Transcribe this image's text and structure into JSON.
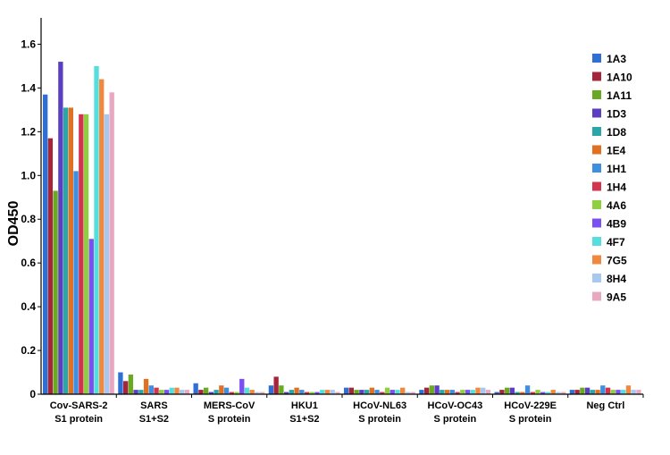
{
  "chart_data": {
    "type": "bar",
    "title": "",
    "xlabel": "",
    "ylabel": "OD450",
    "ylim": [
      0,
      1.7
    ],
    "yticks": [
      "0",
      "0.2",
      "0.4",
      "0.6",
      "0.8",
      "1.0",
      "1.2",
      "1.4",
      "1.6"
    ],
    "legend_position": "right",
    "grid": false,
    "categories": [
      [
        "Cov-SARS-2",
        "S1 protein"
      ],
      [
        "SARS",
        "S1+S2"
      ],
      [
        "MERS-CoV",
        "S protein"
      ],
      [
        "HKU1",
        "S1+S2"
      ],
      [
        "HCoV-NL63",
        "S protein"
      ],
      [
        "HCoV-OC43",
        "S protein"
      ],
      [
        "HCoV-229E",
        "S protein"
      ],
      [
        "Neg Ctrl"
      ]
    ],
    "series": [
      {
        "name": "1A3",
        "color": "#2f6fd4",
        "values": [
          1.37,
          0.1,
          0.05,
          0.04,
          0.03,
          0.02,
          0.01,
          0.02
        ]
      },
      {
        "name": "1A10",
        "color": "#a3263a",
        "values": [
          1.17,
          0.06,
          0.02,
          0.08,
          0.03,
          0.03,
          0.02,
          0.02
        ]
      },
      {
        "name": "1A11",
        "color": "#6aaa22",
        "values": [
          0.93,
          0.09,
          0.03,
          0.04,
          0.02,
          0.04,
          0.03,
          0.03
        ]
      },
      {
        "name": "1D3",
        "color": "#5b3fc0",
        "values": [
          1.52,
          0.02,
          0.01,
          0.01,
          0.02,
          0.04,
          0.03,
          0.03
        ]
      },
      {
        "name": "1D8",
        "color": "#2aa6a6",
        "values": [
          1.31,
          0.02,
          0.02,
          0.02,
          0.02,
          0.02,
          0.01,
          0.02
        ]
      },
      {
        "name": "1E4",
        "color": "#e07022",
        "values": [
          1.31,
          0.07,
          0.04,
          0.03,
          0.03,
          0.02,
          0.01,
          0.02
        ]
      },
      {
        "name": "1H1",
        "color": "#3f8fe0",
        "values": [
          1.02,
          0.04,
          0.03,
          0.02,
          0.02,
          0.02,
          0.04,
          0.04
        ]
      },
      {
        "name": "1H4",
        "color": "#d3344d",
        "values": [
          1.28,
          0.03,
          0.01,
          0.01,
          0.01,
          0.01,
          0.01,
          0.03
        ]
      },
      {
        "name": "4A6",
        "color": "#8ed040",
        "values": [
          1.28,
          0.02,
          0.01,
          0.01,
          0.03,
          0.02,
          0.02,
          0.02
        ]
      },
      {
        "name": "4B9",
        "color": "#7b4ff0",
        "values": [
          0.71,
          0.02,
          0.07,
          0.01,
          0.02,
          0.02,
          0.01,
          0.02
        ]
      },
      {
        "name": "4F7",
        "color": "#55dede",
        "values": [
          1.5,
          0.03,
          0.03,
          0.02,
          0.02,
          0.02,
          0.01,
          0.02
        ]
      },
      {
        "name": "7G5",
        "color": "#f08840",
        "values": [
          1.44,
          0.03,
          0.02,
          0.02,
          0.03,
          0.03,
          0.02,
          0.04
        ]
      },
      {
        "name": "8H4",
        "color": "#a8c8f0",
        "values": [
          1.28,
          0.02,
          0.01,
          0.02,
          0.01,
          0.03,
          0.01,
          0.02
        ]
      },
      {
        "name": "9A5",
        "color": "#e8a8c0",
        "values": [
          1.38,
          0.02,
          0.01,
          0.01,
          0.01,
          0.02,
          0.01,
          0.02
        ]
      }
    ]
  }
}
